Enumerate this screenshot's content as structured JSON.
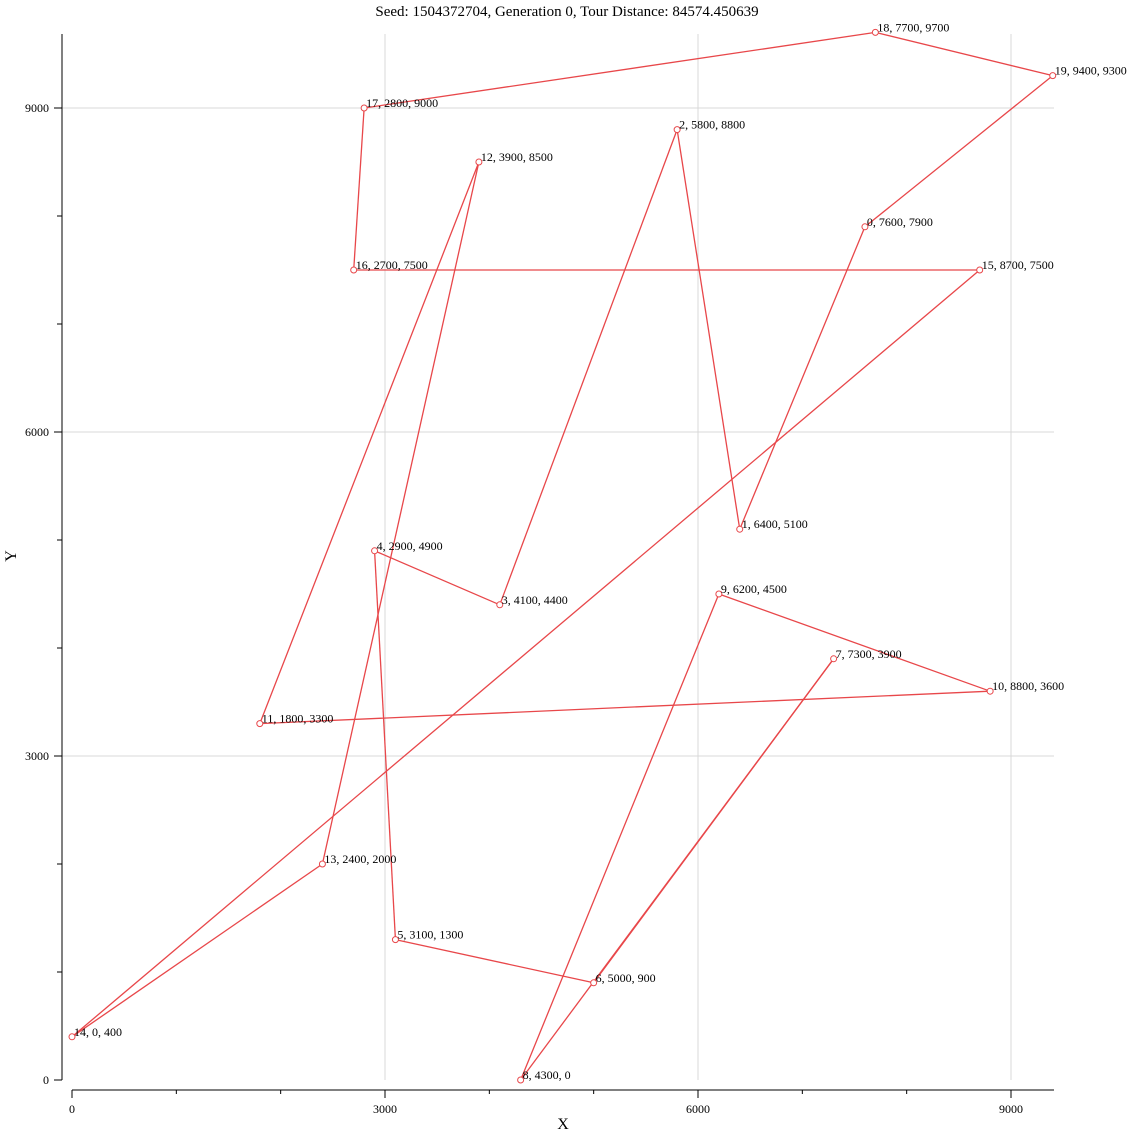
{
  "chart_data": {
    "type": "line",
    "title": "Seed: 1504372704, Generation 0, Tour Distance: 84574.450639",
    "xlabel": "X",
    "ylabel": "Y",
    "xlim": [
      0,
      9400
    ],
    "ylim": [
      0,
      9700
    ],
    "x_ticks": [
      0,
      3000,
      6000,
      9000
    ],
    "y_ticks": [
      0,
      3000,
      6000,
      9000
    ],
    "grid": true,
    "line_color": "#e8474a",
    "cities": [
      {
        "id": 0,
        "x": 7600,
        "y": 7900,
        "label": "0, 7600, 7900"
      },
      {
        "id": 1,
        "x": 6400,
        "y": 5100,
        "label": "1, 6400, 5100"
      },
      {
        "id": 2,
        "x": 5800,
        "y": 8800,
        "label": "2, 5800, 8800"
      },
      {
        "id": 3,
        "x": 4100,
        "y": 4400,
        "label": "3, 4100, 4400"
      },
      {
        "id": 4,
        "x": 2900,
        "y": 4900,
        "label": "4, 2900, 4900"
      },
      {
        "id": 5,
        "x": 3100,
        "y": 1300,
        "label": "5, 3100, 1300"
      },
      {
        "id": 6,
        "x": 5000,
        "y": 900,
        "label": "6, 5000, 900"
      },
      {
        "id": 7,
        "x": 7300,
        "y": 3900,
        "label": "7, 7300, 3900"
      },
      {
        "id": 8,
        "x": 4300,
        "y": 0,
        "label": "8, 4300, 0"
      },
      {
        "id": 9,
        "x": 6200,
        "y": 4500,
        "label": "9, 6200, 4500"
      },
      {
        "id": 10,
        "x": 8800,
        "y": 3600,
        "label": "10, 8800, 3600"
      },
      {
        "id": 11,
        "x": 1800,
        "y": 3300,
        "label": "11, 1800, 3300"
      },
      {
        "id": 12,
        "x": 3900,
        "y": 8500,
        "label": "12, 3900, 8500"
      },
      {
        "id": 13,
        "x": 2400,
        "y": 2000,
        "label": "13, 2400, 2000"
      },
      {
        "id": 14,
        "x": 0,
        "y": 400,
        "label": "14, 0, 400"
      },
      {
        "id": 15,
        "x": 8700,
        "y": 7500,
        "label": "15, 8700, 7500"
      },
      {
        "id": 16,
        "x": 2700,
        "y": 7500,
        "label": "16, 2700, 7500"
      },
      {
        "id": 17,
        "x": 2800,
        "y": 9000,
        "label": "17, 2800, 9000"
      },
      {
        "id": 18,
        "x": 7700,
        "y": 9700,
        "label": "18, 7700, 9700"
      },
      {
        "id": 19,
        "x": 9400,
        "y": 9300,
        "label": "19, 9400, 9300"
      }
    ],
    "tour": [
      0,
      1,
      2,
      3,
      4,
      5,
      6,
      7,
      8,
      9,
      10,
      11,
      12,
      13,
      14,
      15,
      16,
      17,
      18,
      19,
      0
    ]
  }
}
